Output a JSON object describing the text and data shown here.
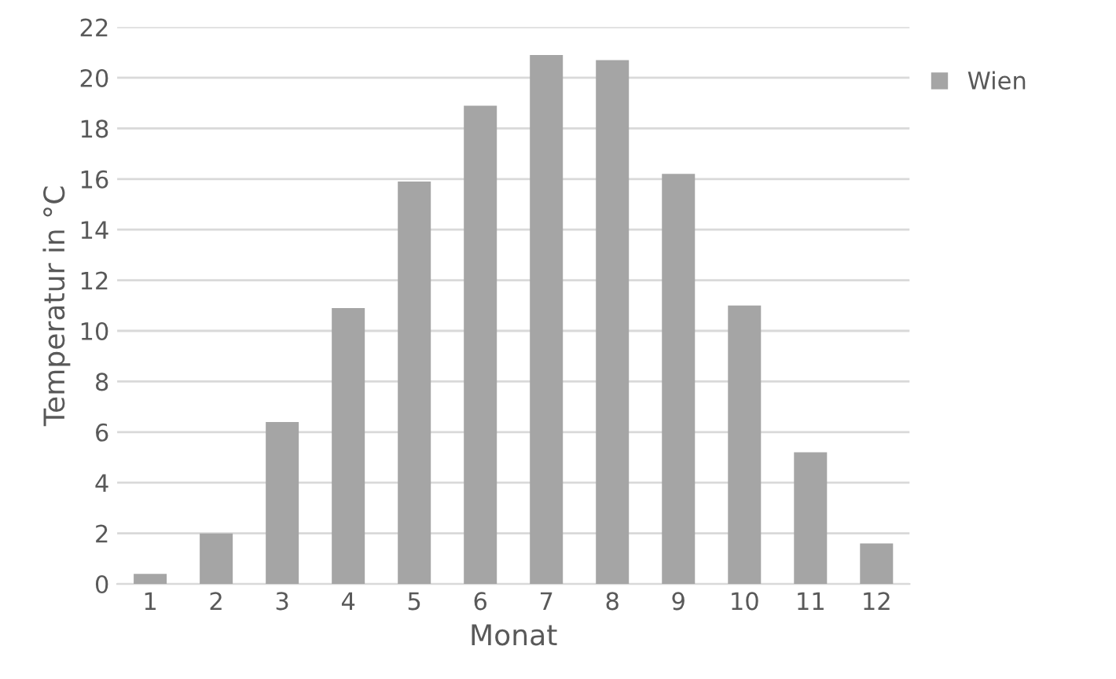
{
  "chart_data": {
    "type": "bar",
    "xlabel": "Monat",
    "ylabel": "Temperatur in °C",
    "categories": [
      "1",
      "2",
      "3",
      "4",
      "5",
      "6",
      "7",
      "8",
      "9",
      "10",
      "11",
      "12"
    ],
    "series": [
      {
        "name": "Wien",
        "color": "#a5a5a5",
        "values": [
          0.4,
          2.0,
          6.4,
          10.9,
          15.9,
          18.9,
          20.9,
          20.7,
          16.2,
          11.0,
          5.2,
          1.6
        ]
      }
    ],
    "ylim": [
      0,
      22
    ],
    "yticks": [
      0,
      2,
      4,
      6,
      8,
      10,
      12,
      14,
      16,
      18,
      20,
      22
    ],
    "grid": "y",
    "legend": "top right"
  }
}
